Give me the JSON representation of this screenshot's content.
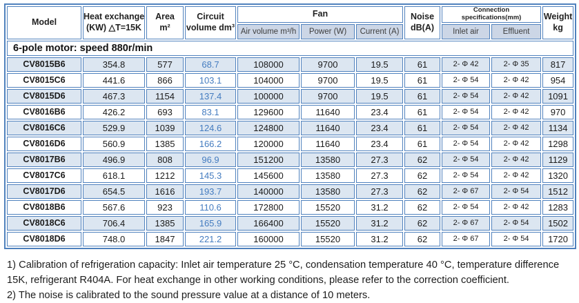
{
  "colors": {
    "border": "#4f81bd",
    "row_alt": "#dce6f1",
    "subheader_bg": "#ccd6e6",
    "circuit_text": "#447cc0"
  },
  "table": {
    "header": {
      "model": "Model",
      "heat_line1": "Heat exchange",
      "heat_line2": "(KW) △T=15K",
      "area_line1": "Area",
      "area_line2": "m²",
      "circuit_line1": "Circuit",
      "circuit_line2": "volume dm³",
      "fan": "Fan",
      "air": "Air volume m³/h",
      "power": "Power (W)",
      "current": "Current (A)",
      "noise_line1": "Noise",
      "noise_line2": "dB(A)",
      "connection_line1": "Connection",
      "connection_line2": "specifications(mm)",
      "inlet": "Inlet air",
      "effluent": "Effluent",
      "weight_line1": "Weight",
      "weight_line2": "kg"
    },
    "section_title": "6-pole motor: speed 880r/min",
    "rows": [
      {
        "model": "CV8015B6",
        "heat": "354.8",
        "area": "577",
        "circuit": "68.7",
        "air": "108000",
        "power": "9700",
        "current": "19.5",
        "noise": "61",
        "inlet": "2- Φ 42",
        "effluent": "2- Φ 35",
        "weight": "817"
      },
      {
        "model": "CV8015C6",
        "heat": "441.6",
        "area": "866",
        "circuit": "103.1",
        "air": "104000",
        "power": "9700",
        "current": "19.5",
        "noise": "61",
        "inlet": "2- Φ 54",
        "effluent": "2- Φ 42",
        "weight": "954"
      },
      {
        "model": "CV8015D6",
        "heat": "467.3",
        "area": "1154",
        "circuit": "137.4",
        "air": "100000",
        "power": "9700",
        "current": "19.5",
        "noise": "61",
        "inlet": "2- Φ 54",
        "effluent": "2- Φ 42",
        "weight": "1091"
      },
      {
        "model": "CV8016B6",
        "heat": "426.2",
        "area": "693",
        "circuit": "83.1",
        "air": "129600",
        "power": "11640",
        "current": "23.4",
        "noise": "61",
        "inlet": "2- Φ 54",
        "effluent": "2- Φ 42",
        "weight": "970"
      },
      {
        "model": "CV8016C6",
        "heat": "529.9",
        "area": "1039",
        "circuit": "124.6",
        "air": "124800",
        "power": "11640",
        "current": "23.4",
        "noise": "61",
        "inlet": "2- Φ 54",
        "effluent": "2- Φ 42",
        "weight": "1134"
      },
      {
        "model": "CV8016D6",
        "heat": "560.9",
        "area": "1385",
        "circuit": "166.2",
        "air": "120000",
        "power": "11640",
        "current": "23.4",
        "noise": "61",
        "inlet": "2- Φ 54",
        "effluent": "2- Φ 42",
        "weight": "1298"
      },
      {
        "model": "CV8017B6",
        "heat": "496.9",
        "area": "808",
        "circuit": "96.9",
        "air": "151200",
        "power": "13580",
        "current": "27.3",
        "noise": "62",
        "inlet": "2- Φ 54",
        "effluent": "2- Φ 42",
        "weight": "1129"
      },
      {
        "model": "CV8017C6",
        "heat": "618.1",
        "area": "1212",
        "circuit": "145.3",
        "air": "145600",
        "power": "13580",
        "current": "27.3",
        "noise": "62",
        "inlet": "2- Φ 54",
        "effluent": "2- Φ 42",
        "weight": "1320"
      },
      {
        "model": "CV8017D6",
        "heat": "654.5",
        "area": "1616",
        "circuit": "193.7",
        "air": "140000",
        "power": "13580",
        "current": "27.3",
        "noise": "62",
        "inlet": "2- Φ 67",
        "effluent": "2- Φ 54",
        "weight": "1512"
      },
      {
        "model": "CV8018B6",
        "heat": "567.6",
        "area": "923",
        "circuit": "110.6",
        "air": "172800",
        "power": "15520",
        "current": "31.2",
        "noise": "62",
        "inlet": "2- Φ 54",
        "effluent": "2- Φ 42",
        "weight": "1283"
      },
      {
        "model": "CV8018C6",
        "heat": "706.4",
        "area": "1385",
        "circuit": "165.9",
        "air": "166400",
        "power": "15520",
        "current": "31.2",
        "noise": "62",
        "inlet": "2- Φ 67",
        "effluent": "2- Φ 54",
        "weight": "1502"
      },
      {
        "model": "CV8018D6",
        "heat": "748.0",
        "area": "1847",
        "circuit": "221.2",
        "air": "160000",
        "power": "15520",
        "current": "31.2",
        "noise": "62",
        "inlet": "2- Φ 67",
        "effluent": "2- Φ 54",
        "weight": "1720"
      }
    ]
  },
  "notes": [
    "1) Calibration of refrigeration capacity: Inlet air temperature 25 °C, condensation temperature 40 °C, temperature difference 15K, refrigerant R404A. For heat exchange in other working conditions, please refer to the correction coefficient.",
    "2) The noise is calibrated to the sound pressure value at a distance of 10 meters."
  ]
}
